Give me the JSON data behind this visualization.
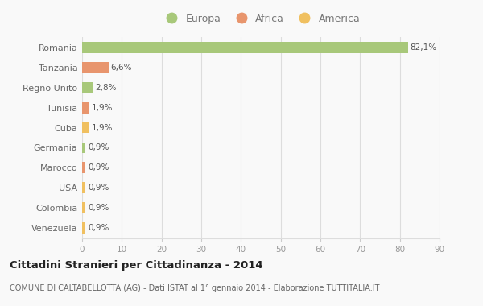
{
  "categories": [
    "Romania",
    "Tanzania",
    "Regno Unito",
    "Tunisia",
    "Cuba",
    "Germania",
    "Marocco",
    "USA",
    "Colombia",
    "Venezuela"
  ],
  "values": [
    82.1,
    6.6,
    2.8,
    1.9,
    1.9,
    0.9,
    0.9,
    0.9,
    0.9,
    0.9
  ],
  "labels": [
    "82,1%",
    "6,6%",
    "2,8%",
    "1,9%",
    "1,9%",
    "0,9%",
    "0,9%",
    "0,9%",
    "0,9%",
    "0,9%"
  ],
  "colors": [
    "#a8c87a",
    "#e8956d",
    "#a8c87a",
    "#e8956d",
    "#f0c060",
    "#a8c87a",
    "#e8956d",
    "#f0c060",
    "#f0c060",
    "#f0c060"
  ],
  "legend_labels": [
    "Europa",
    "Africa",
    "America"
  ],
  "legend_colors": [
    "#a8c87a",
    "#e8956d",
    "#f0c060"
  ],
  "title": "Cittadini Stranieri per Cittadinanza - 2014",
  "subtitle": "COMUNE DI CALTABELLOTTA (AG) - Dati ISTAT al 1° gennaio 2014 - Elaborazione TUTTITALIA.IT",
  "xlim": [
    0,
    90
  ],
  "xticks": [
    0,
    10,
    20,
    30,
    40,
    50,
    60,
    70,
    80,
    90
  ],
  "bg_color": "#f9f9f9",
  "grid_color": "#dddddd",
  "bar_height": 0.55
}
